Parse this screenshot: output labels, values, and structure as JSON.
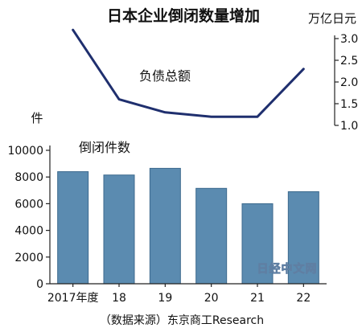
{
  "chart_data": {
    "type": "bar+line",
    "title": "日本企业倒闭数量增加",
    "categories": [
      "2017年度",
      "18",
      "19",
      "20",
      "21",
      "22"
    ],
    "series": [
      {
        "name": "倒闭件数",
        "type": "bar",
        "axis": "left",
        "values": [
          8400,
          8150,
          8650,
          7150,
          6000,
          6900
        ],
        "color": "#5b8bb0"
      },
      {
        "name": "负债总额",
        "type": "line",
        "axis": "right",
        "values": [
          3.2,
          1.6,
          1.3,
          1.2,
          1.2,
          2.3
        ],
        "color": "#1f2f6e"
      }
    ],
    "left_axis": {
      "unit": "件",
      "ylim": [
        0,
        10000
      ],
      "ticks": [
        "0",
        "2000",
        "4000",
        "6000",
        "8000",
        "10000"
      ]
    },
    "right_axis": {
      "unit": "万亿日元",
      "ylim": [
        1.0,
        3.0
      ],
      "ticks": [
        "1.0",
        "1.5",
        "2.0",
        "2.5",
        "3.0"
      ]
    },
    "grid": false,
    "legend": "inline labels"
  },
  "watermark": "日经中文网",
  "source": "（数据来源）东京商工Research",
  "colors": {
    "bar": "#5b8bb0",
    "bar_edge": "#3d6a8e",
    "line": "#1f2f6e",
    "axis": "#222222",
    "watermark": "#5f7fa3"
  }
}
